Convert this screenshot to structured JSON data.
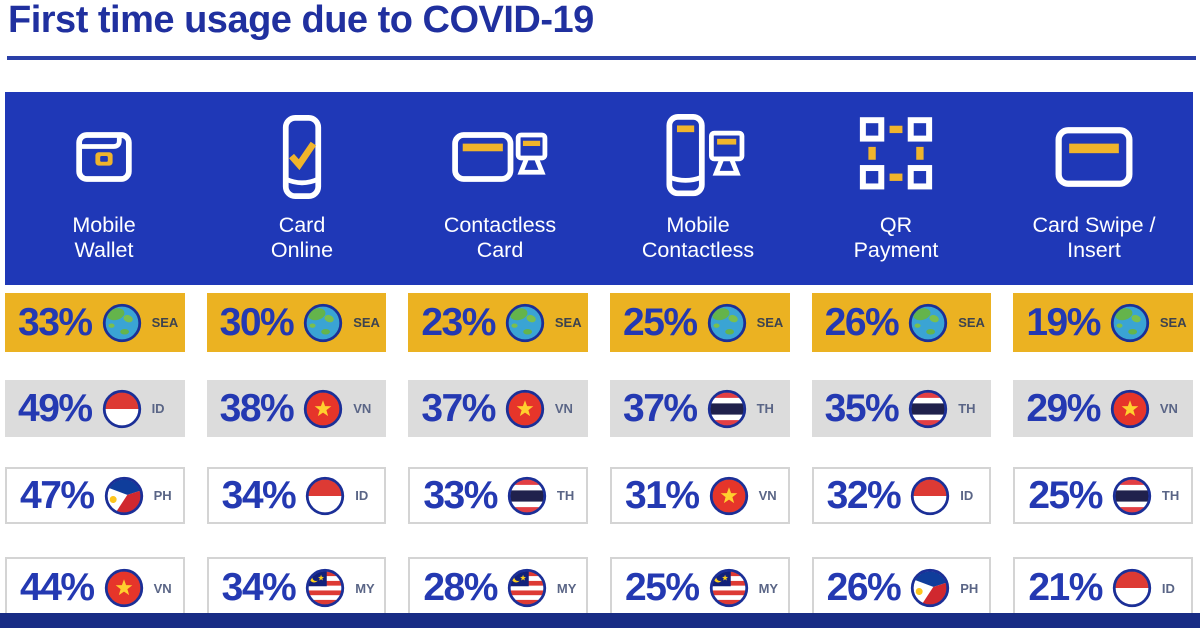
{
  "page": {
    "title": "First time usage due to COVID-19",
    "colors": {
      "band_blue": "#1f38b7",
      "title_blue": "#20309f",
      "underline_blue": "#2a3fa8",
      "percent_blue": "#2439b2",
      "accent_yellow": "#ebb222",
      "row_gray": "#dcdcdc",
      "cell_border": "#d4d4d4",
      "footer_navy": "#182c85",
      "flag_ring_navy": "#1b2f97",
      "globe_ocean": "#3aa4d4",
      "globe_land": "#64b44b",
      "flag_red": "#dd3a34",
      "star_yellow": "#ffd02e",
      "thai_navy": "#20214c",
      "ph_blue": "#0f3d9b",
      "ph_red": "#d0282f",
      "my_navy": "#12217a"
    }
  },
  "methods": [
    {
      "icon": "mobile-wallet-icon",
      "label": [
        "Mobile",
        "Wallet"
      ]
    },
    {
      "icon": "card-online-icon",
      "label": [
        "Card",
        "Online"
      ]
    },
    {
      "icon": "contactless-card-icon",
      "label": [
        "Contactless",
        "Card"
      ]
    },
    {
      "icon": "mobile-contactless-icon",
      "label": [
        "Mobile",
        "Contactless"
      ]
    },
    {
      "icon": "qr-payment-icon",
      "label": [
        "QR",
        "Payment"
      ]
    },
    {
      "icon": "card-swipe-icon",
      "label": [
        "Card Swipe /",
        "Insert"
      ]
    }
  ],
  "rows": [
    {
      "style": "sea",
      "cells": [
        {
          "value": "33%",
          "code": "SEA",
          "flag": "sea"
        },
        {
          "value": "30%",
          "code": "SEA",
          "flag": "sea"
        },
        {
          "value": "23%",
          "code": "SEA",
          "flag": "sea"
        },
        {
          "value": "25%",
          "code": "SEA",
          "flag": "sea"
        },
        {
          "value": "26%",
          "code": "SEA",
          "flag": "sea"
        },
        {
          "value": "19%",
          "code": "SEA",
          "flag": "sea"
        }
      ]
    },
    {
      "style": "gray",
      "cells": [
        {
          "value": "49%",
          "code": "ID",
          "flag": "id"
        },
        {
          "value": "38%",
          "code": "VN",
          "flag": "vn"
        },
        {
          "value": "37%",
          "code": "VN",
          "flag": "vn"
        },
        {
          "value": "37%",
          "code": "TH",
          "flag": "th"
        },
        {
          "value": "35%",
          "code": "TH",
          "flag": "th"
        },
        {
          "value": "29%",
          "code": "VN",
          "flag": "vn"
        }
      ]
    },
    {
      "style": "white",
      "cells": [
        {
          "value": "47%",
          "code": "PH",
          "flag": "ph"
        },
        {
          "value": "34%",
          "code": "ID",
          "flag": "id"
        },
        {
          "value": "33%",
          "code": "TH",
          "flag": "th"
        },
        {
          "value": "31%",
          "code": "VN",
          "flag": "vn"
        },
        {
          "value": "32%",
          "code": "ID",
          "flag": "id"
        },
        {
          "value": "25%",
          "code": "TH",
          "flag": "th"
        }
      ]
    },
    {
      "style": "white",
      "cells": [
        {
          "value": "44%",
          "code": "VN",
          "flag": "vn"
        },
        {
          "value": "34%",
          "code": "MY",
          "flag": "my"
        },
        {
          "value": "28%",
          "code": "MY",
          "flag": "my"
        },
        {
          "value": "25%",
          "code": "MY",
          "flag": "my"
        },
        {
          "value": "26%",
          "code": "PH",
          "flag": "ph"
        },
        {
          "value": "21%",
          "code": "ID",
          "flag": "id"
        }
      ]
    }
  ],
  "chart_data": {
    "type": "table",
    "title": "First time usage due to COVID-19",
    "categories": [
      "Mobile Wallet",
      "Card Online",
      "Contactless Card",
      "Mobile Contactless",
      "QR Payment",
      "Card Swipe / Insert"
    ],
    "unit": "percent",
    "data": [
      {
        "method": "Mobile Wallet",
        "values": [
          {
            "region": "SEA",
            "pct": 33
          },
          {
            "region": "ID",
            "pct": 49
          },
          {
            "region": "PH",
            "pct": 47
          },
          {
            "region": "VN",
            "pct": 44
          }
        ]
      },
      {
        "method": "Card Online",
        "values": [
          {
            "region": "SEA",
            "pct": 30
          },
          {
            "region": "VN",
            "pct": 38
          },
          {
            "region": "ID",
            "pct": 34
          },
          {
            "region": "MY",
            "pct": 34
          }
        ]
      },
      {
        "method": "Contactless Card",
        "values": [
          {
            "region": "SEA",
            "pct": 23
          },
          {
            "region": "VN",
            "pct": 37
          },
          {
            "region": "TH",
            "pct": 33
          },
          {
            "region": "MY",
            "pct": 28
          }
        ]
      },
      {
        "method": "Mobile Contactless",
        "values": [
          {
            "region": "SEA",
            "pct": 25
          },
          {
            "region": "TH",
            "pct": 37
          },
          {
            "region": "VN",
            "pct": 31
          },
          {
            "region": "MY",
            "pct": 25
          }
        ]
      },
      {
        "method": "QR Payment",
        "values": [
          {
            "region": "SEA",
            "pct": 26
          },
          {
            "region": "TH",
            "pct": 35
          },
          {
            "region": "ID",
            "pct": 32
          },
          {
            "region": "PH",
            "pct": 26
          }
        ]
      },
      {
        "method": "Card Swipe / Insert",
        "values": [
          {
            "region": "SEA",
            "pct": 19
          },
          {
            "region": "VN",
            "pct": 29
          },
          {
            "region": "TH",
            "pct": 25
          },
          {
            "region": "ID",
            "pct": 21
          }
        ]
      }
    ]
  }
}
